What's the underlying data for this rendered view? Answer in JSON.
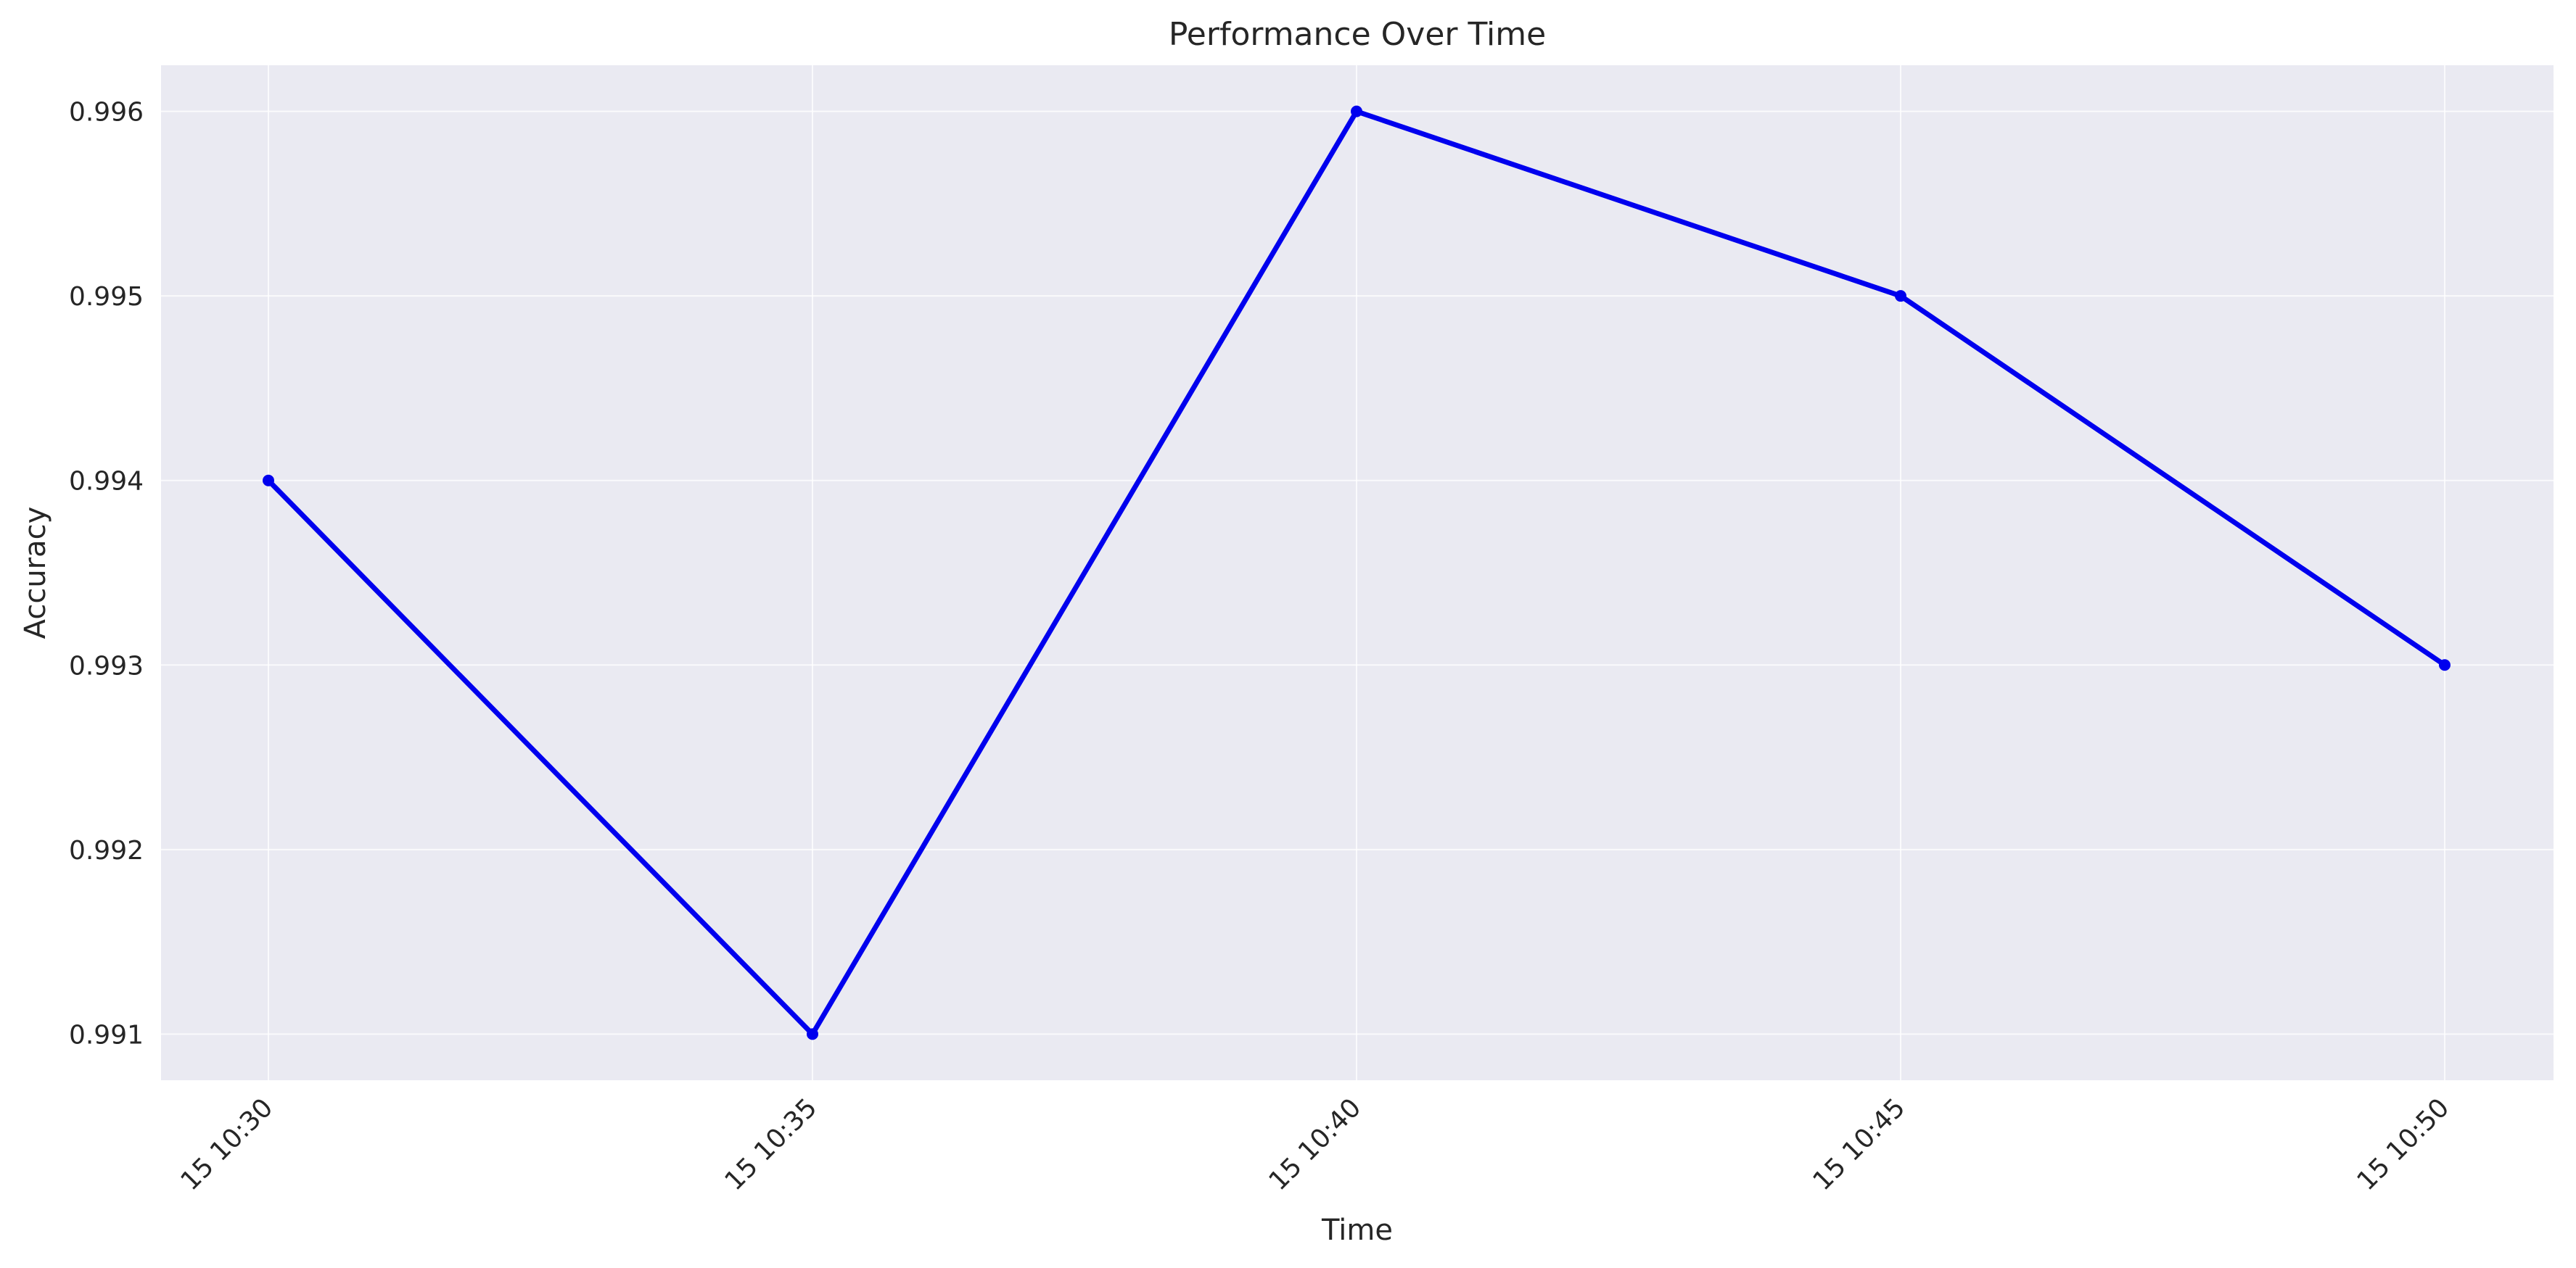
{
  "chart_data": {
    "type": "line",
    "title": "Performance Over Time",
    "xlabel": "Time",
    "ylabel": "Accuracy",
    "categories": [
      "15 10:30",
      "15 10:35",
      "15 10:40",
      "15 10:45",
      "15 10:50"
    ],
    "series": [
      {
        "values": [
          0.994,
          0.991,
          0.996,
          0.995,
          0.993
        ]
      }
    ],
    "y_ticks": [
      0.991,
      0.992,
      0.993,
      0.994,
      0.995,
      0.996
    ],
    "y_tick_labels": [
      "0.991",
      "0.992",
      "0.993",
      "0.994",
      "0.995",
      "0.996"
    ],
    "ylim": [
      0.99075,
      0.99625
    ],
    "grid": true,
    "legend": "none",
    "colors": {
      "line": "#0000ee",
      "plot_background": "#eaeaf2",
      "grid": "#ffffff"
    }
  }
}
